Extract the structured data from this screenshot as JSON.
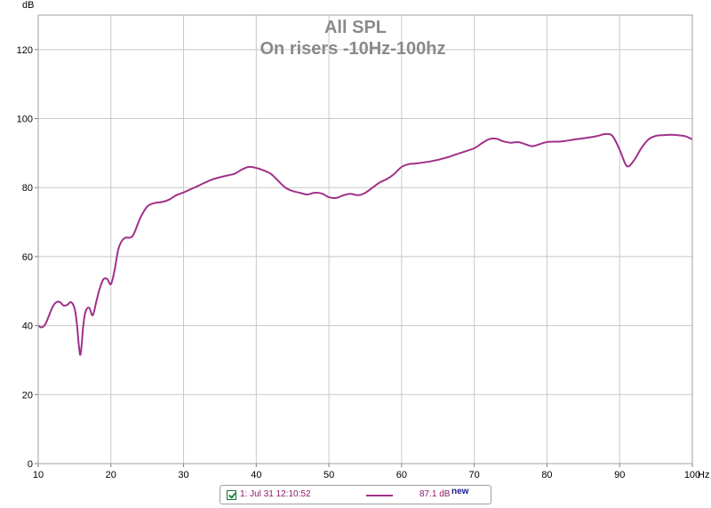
{
  "chart_data": {
    "type": "line",
    "title": "All SPL",
    "subtitle": "On risers -10Hz-100hz",
    "ylabel": "dB",
    "xunit": "Hz",
    "xlim": [
      10,
      100
    ],
    "ylim": [
      0,
      130
    ],
    "x_ticks": [
      10,
      20,
      30,
      40,
      50,
      60,
      70,
      80,
      90,
      100
    ],
    "y_ticks": [
      0,
      20,
      40,
      60,
      80,
      100,
      120
    ],
    "grid": true,
    "series": [
      {
        "color": "#a0308a",
        "x": [
          10,
          10.5,
          11,
          11.5,
          12,
          12.5,
          13,
          13.5,
          14,
          14.5,
          15,
          15.3,
          15.6,
          15.8,
          16,
          16.2,
          16.5,
          17,
          17.5,
          18,
          18.5,
          19,
          19.5,
          20,
          20.5,
          21,
          21.5,
          22,
          23,
          24,
          25,
          26,
          27,
          28,
          29,
          30,
          32,
          34,
          36,
          37,
          38,
          39,
          40,
          41,
          42,
          43,
          44,
          45,
          46,
          47,
          48,
          49,
          50,
          51,
          52,
          53,
          54,
          55,
          56,
          57,
          58,
          59,
          60,
          61,
          62,
          64,
          66,
          68,
          70,
          71,
          72,
          73,
          74,
          75,
          76,
          77,
          78,
          79,
          80,
          82,
          84,
          86,
          87,
          88,
          89,
          90,
          91,
          92,
          93,
          94,
          95,
          96,
          97,
          98,
          99,
          100
        ],
        "y": [
          40,
          39.5,
          40.5,
          43,
          45.5,
          46.8,
          46.8,
          45.8,
          46,
          46.8,
          45,
          41,
          34,
          31.5,
          35,
          40,
          44,
          45.2,
          43,
          47,
          51,
          53.5,
          53.5,
          52,
          56,
          62,
          64.5,
          65.5,
          66,
          71,
          74.5,
          75.5,
          75.8,
          76.5,
          77.8,
          78.6,
          80.5,
          82.4,
          83.5,
          84,
          85.2,
          86,
          85.7,
          85,
          84,
          82,
          80,
          79,
          78.5,
          78,
          78.5,
          78.3,
          77.2,
          77,
          77.8,
          78.2,
          77.8,
          78.5,
          80,
          81.5,
          82.5,
          84,
          86,
          86.8,
          87,
          87.6,
          88.6,
          90,
          91.4,
          92.8,
          94,
          94.2,
          93.4,
          93,
          93.2,
          92.6,
          92,
          92.6,
          93.2,
          93.4,
          94,
          94.6,
          95,
          95.5,
          95,
          91,
          86.2,
          88,
          91.5,
          94,
          95,
          95.2,
          95.3,
          95.2,
          94.9,
          94
        ]
      }
    ]
  },
  "legend": {
    "name": "1: Jul 31 12:10:52",
    "value": "87.1 dB",
    "badge": "new",
    "checked": true
  }
}
